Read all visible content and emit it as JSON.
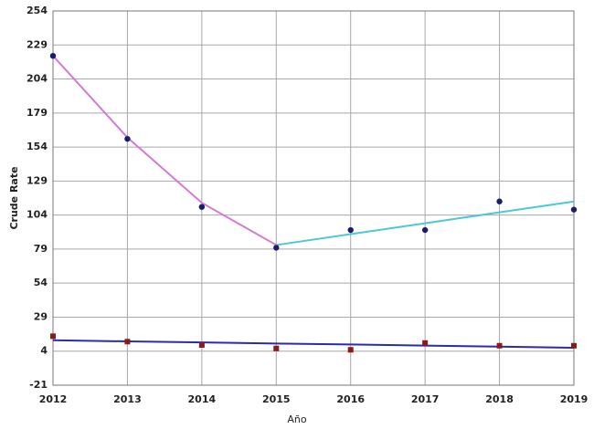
{
  "chart_data": {
    "type": "scatter",
    "x_label": "Año",
    "y_label": "Crude Rate",
    "x": [
      2012,
      2013,
      2014,
      2015,
      2016,
      2017,
      2018,
      2019
    ],
    "xlim": [
      2012,
      2019
    ],
    "xticks": [
      2012,
      2013,
      2014,
      2015,
      2016,
      2017,
      2018,
      2019
    ],
    "ylim": [
      -21,
      254
    ],
    "yticks": [
      -21,
      4,
      29,
      54,
      79,
      104,
      129,
      154,
      179,
      204,
      229,
      254
    ],
    "grid": true,
    "series": [
      {
        "mode": "line",
        "color": "#d47ad4",
        "values": [
          221,
          161,
          113,
          82,
          null,
          null,
          null,
          null
        ]
      },
      {
        "mode": "line",
        "color": "#4cc8d8",
        "values": [
          null,
          null,
          null,
          82,
          90,
          98,
          106,
          114
        ]
      },
      {
        "mode": "line",
        "color": "#2b2bb0",
        "values": [
          12,
          11.2,
          10.4,
          9.6,
          8.9,
          8.1,
          7.3,
          6.5
        ]
      },
      {
        "mode": "markers",
        "marker": "circle",
        "color": "#1c1c6e",
        "values": [
          221,
          160,
          110,
          80,
          93,
          93,
          114,
          108
        ]
      },
      {
        "mode": "markers",
        "marker": "square",
        "color": "#8b1a1a",
        "values": [
          15,
          11,
          8.5,
          6,
          5,
          10,
          8,
          8
        ]
      }
    ]
  }
}
